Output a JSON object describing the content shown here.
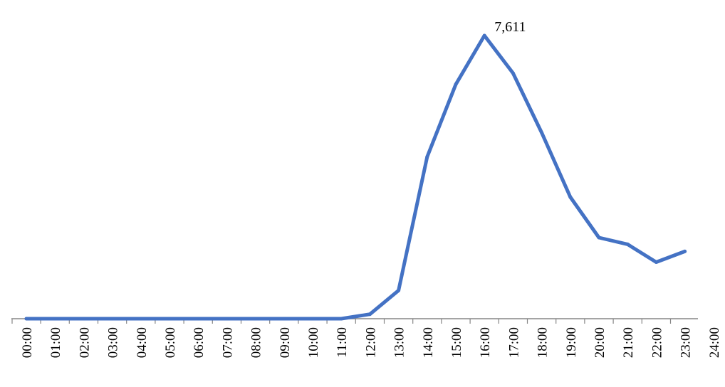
{
  "chart_data": {
    "type": "line",
    "title": "",
    "xlabel": "",
    "ylabel": "",
    "grid": false,
    "legend": "none",
    "series_color": "#4472C4",
    "axis_color": "#868686",
    "tick_labels": [
      "00:00",
      "01:00",
      "02:00",
      "03:00",
      "04:00",
      "05:00",
      "06:00",
      "07:00",
      "08:00",
      "09:00",
      "10:00",
      "11:00",
      "12:00",
      "13:00",
      "14:00",
      "15:00",
      "16:00",
      "17:00",
      "18:00",
      "19:00",
      "20:00",
      "21:00",
      "22:00",
      "23:00",
      "24:00"
    ],
    "x": [
      "00:30",
      "01:30",
      "02:30",
      "03:30",
      "04:30",
      "05:30",
      "06:30",
      "07:30",
      "08:30",
      "09:30",
      "10:30",
      "11:30",
      "12:30",
      "13:30",
      "14:30",
      "15:30",
      "16:30",
      "17:30",
      "18:30",
      "19:30",
      "20:30",
      "21:30",
      "22:30",
      "23:30"
    ],
    "values": [
      0,
      0,
      0,
      0,
      0,
      0,
      0,
      0,
      0,
      0,
      0,
      0,
      120,
      760,
      4350,
      6300,
      7611,
      6600,
      5000,
      3270,
      2180,
      2000,
      1520,
      1810
    ],
    "ylim": [
      0,
      7611
    ],
    "annotations": [
      {
        "index": 16,
        "text": "7,611"
      }
    ]
  }
}
